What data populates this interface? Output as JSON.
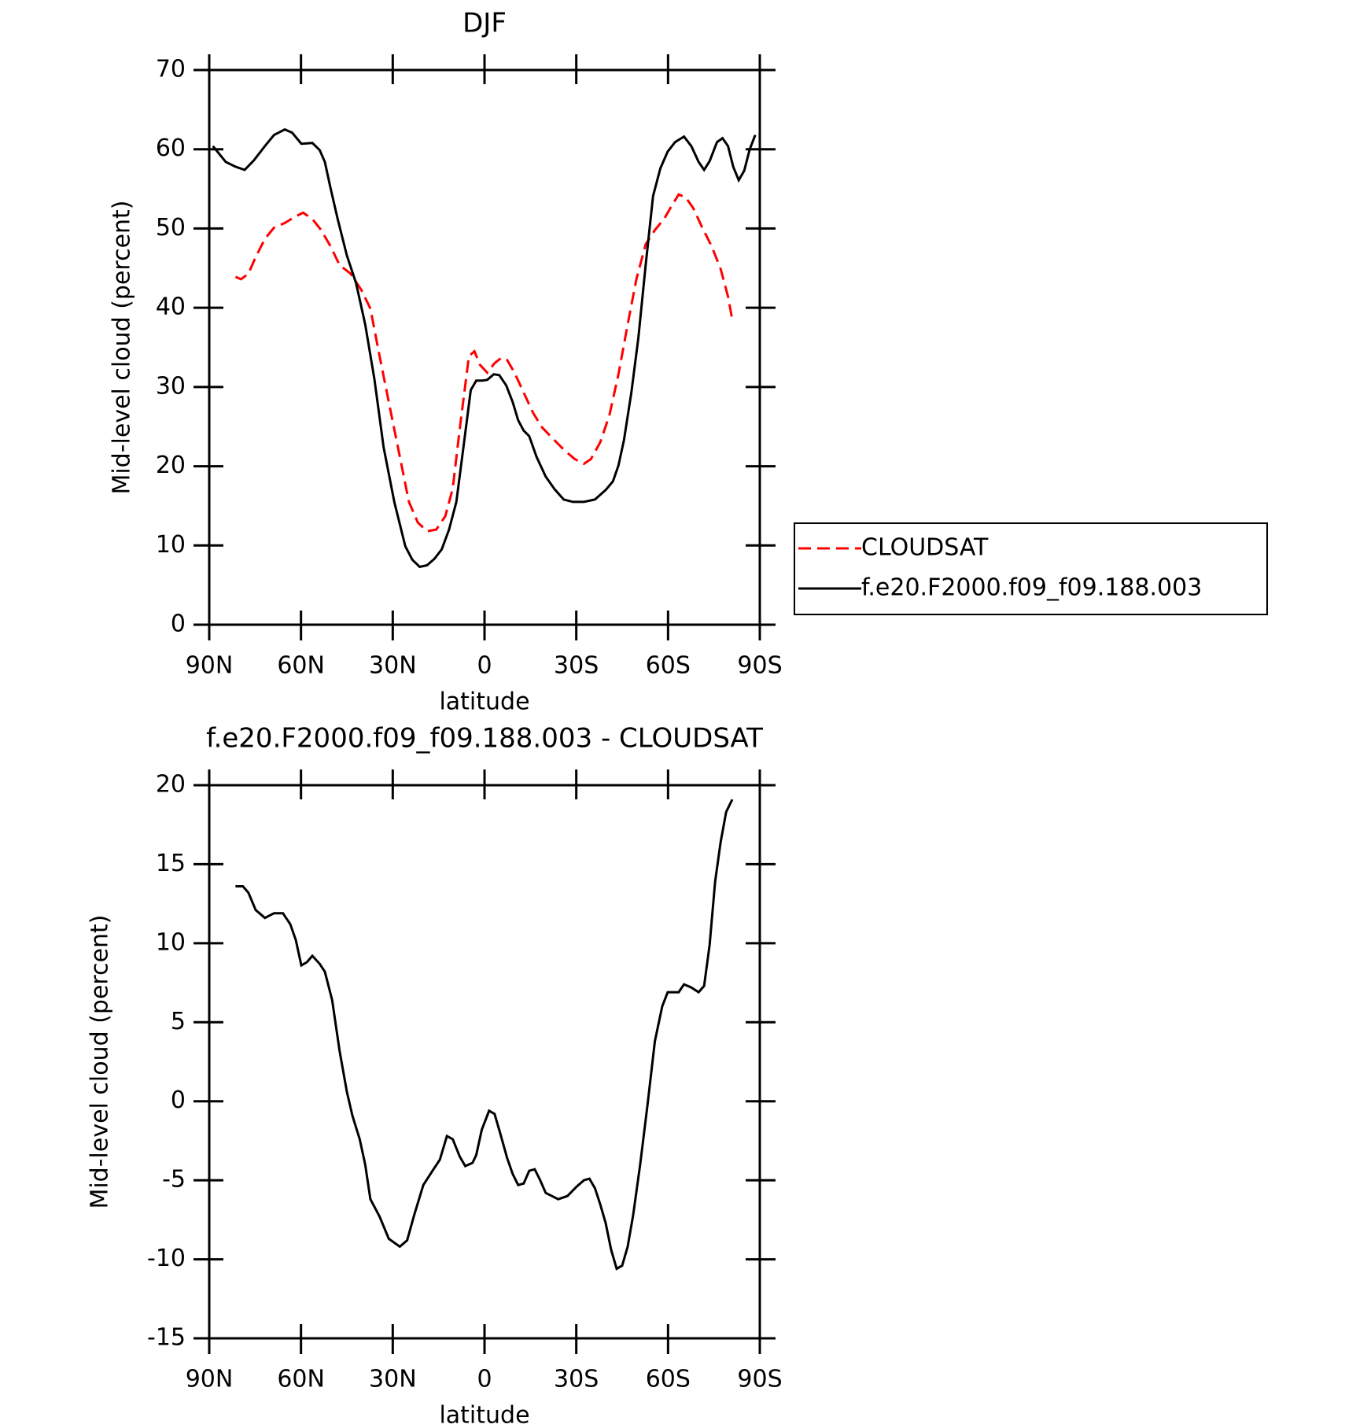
{
  "chart_data": [
    {
      "type": "line",
      "title": "DJF",
      "xlabel": "latitude",
      "ylabel": "Mid-level cloud (percent)",
      "xlim": [
        90,
        -90
      ],
      "xticks": [
        {
          "value": 90,
          "label": "90N"
        },
        {
          "value": 60,
          "label": "60N"
        },
        {
          "value": 30,
          "label": "30N"
        },
        0,
        {
          "value": -30,
          "label": "30S"
        },
        {
          "value": -60,
          "label": "60S"
        },
        {
          "value": -90,
          "label": "90S"
        }
      ],
      "ylim": [
        0,
        70
      ],
      "yticks": [
        0,
        10,
        20,
        30,
        40,
        50,
        60,
        70
      ],
      "legend": "right",
      "series": [
        {
          "name": "CLOUDSAT",
          "color": "#ff0000",
          "dashed": true,
          "x": [
            81.4,
            79.6,
            77.2,
            74.8,
            71.8,
            68.8,
            65.3,
            62.3,
            59.3,
            56.3,
            53.4,
            50.4,
            47.4,
            43.8,
            40.2,
            37.3,
            34.3,
            31.3,
            28.3,
            24.7,
            21.8,
            18.8,
            15.8,
            12.8,
            10.4,
            8.1,
            5.1,
            3.3,
            1.5,
            -0.9,
            -3.3,
            -5.6,
            -7.4,
            -9.8,
            -12.8,
            -15.8,
            -18.8,
            -22.3,
            -25.9,
            -29.5,
            -32.5,
            -34.8,
            -37.8,
            -40.8,
            -43.8,
            -46.8,
            -49.7,
            -52.7,
            -55.7,
            -58.7,
            -61.1,
            -63.5,
            -65.8,
            -68.2,
            -71.2,
            -74.2,
            -77.2,
            -79.6,
            -81.0
          ],
          "values": [
            43.9,
            43.6,
            44.3,
            46.4,
            48.7,
            50.1,
            50.7,
            51.4,
            52.0,
            51.2,
            49.8,
            47.8,
            45.4,
            44.3,
            42.2,
            39.9,
            33.9,
            28.1,
            22.4,
            15.5,
            12.9,
            11.8,
            12.0,
            13.7,
            17.2,
            24.7,
            33.9,
            34.5,
            32.8,
            31.8,
            33.0,
            33.7,
            33.4,
            31.8,
            29.3,
            26.8,
            24.9,
            23.5,
            22.1,
            20.9,
            20.3,
            20.9,
            23.0,
            26.4,
            31.6,
            37.9,
            43.7,
            48.0,
            49.8,
            51.2,
            52.8,
            54.3,
            53.9,
            52.6,
            50.1,
            47.8,
            44.9,
            41.4,
            38.5
          ]
        },
        {
          "name": "f.e20.F2000.f09_f09.188.003",
          "color": "#000000",
          "dashed": false,
          "x": [
            88.8,
            84.6,
            81.4,
            78.4,
            75.4,
            71.8,
            68.8,
            65.3,
            62.9,
            59.9,
            56.3,
            53.9,
            52.2,
            50.4,
            48.0,
            45.0,
            42.0,
            39.0,
            36.0,
            33.0,
            29.5,
            25.9,
            23.6,
            21.2,
            18.8,
            16.4,
            14.0,
            11.6,
            9.2,
            6.9,
            4.5,
            2.7,
            0.9,
            -0.9,
            -3.0,
            -4.8,
            -7.1,
            -9.2,
            -11.0,
            -12.8,
            -14.6,
            -17.0,
            -20.0,
            -22.9,
            -25.9,
            -28.9,
            -32.5,
            -36.1,
            -39.6,
            -42.0,
            -43.8,
            -45.6,
            -48.0,
            -50.3,
            -52.7,
            -55.1,
            -57.5,
            -59.9,
            -62.3,
            -65.2,
            -67.6,
            -70.0,
            -71.8,
            -73.6,
            -76.0,
            -77.8,
            -79.6,
            -81.3,
            -83.1,
            -84.9,
            -86.7,
            -88.5
          ],
          "values": [
            60.4,
            58.4,
            57.8,
            57.4,
            58.6,
            60.4,
            61.8,
            62.5,
            62.1,
            60.7,
            60.8,
            59.9,
            58.4,
            55.2,
            51.2,
            46.6,
            43.1,
            37.9,
            31.0,
            22.4,
            15.5,
            9.9,
            8.2,
            7.3,
            7.5,
            8.3,
            9.5,
            12.0,
            15.5,
            22.4,
            29.6,
            30.8,
            30.8,
            30.9,
            31.6,
            31.5,
            30.2,
            28.1,
            25.8,
            24.5,
            23.8,
            21.2,
            18.7,
            17.1,
            15.8,
            15.5,
            15.5,
            15.8,
            17.0,
            18.1,
            20.1,
            23.3,
            29.3,
            36.2,
            45.4,
            54.1,
            57.6,
            59.7,
            60.9,
            61.6,
            60.4,
            58.4,
            57.4,
            58.5,
            60.9,
            61.4,
            60.4,
            57.8,
            56.1,
            57.3,
            60.0,
            61.8
          ]
        }
      ]
    },
    {
      "type": "line",
      "title": "f.e20.F2000.f09_f09.188.003 - CLOUDSAT",
      "xlabel": "latitude",
      "ylabel": "Mid-level cloud (percent)",
      "xlim": [
        90,
        -90
      ],
      "xticks": [
        {
          "value": 90,
          "label": "90N"
        },
        {
          "value": 60,
          "label": "60N"
        },
        {
          "value": 30,
          "label": "30N"
        },
        0,
        {
          "value": -30,
          "label": "30S"
        },
        {
          "value": -60,
          "label": "60S"
        },
        {
          "value": -90,
          "label": "90S"
        }
      ],
      "ylim": [
        -15,
        20
      ],
      "yticks": [
        -15,
        -10,
        -5,
        0,
        5,
        10,
        15,
        20
      ],
      "series": [
        {
          "color": "#000000",
          "dashed": false,
          "x": [
            81.4,
            79.0,
            77.2,
            74.8,
            71.8,
            68.8,
            65.9,
            63.5,
            61.7,
            59.9,
            58.1,
            56.3,
            53.9,
            52.2,
            49.8,
            47.4,
            45.0,
            43.2,
            40.8,
            39.0,
            37.3,
            34.3,
            31.3,
            27.7,
            25.3,
            23.0,
            20.0,
            17.0,
            14.6,
            12.3,
            10.4,
            8.1,
            6.3,
            3.9,
            2.7,
            0.9,
            -1.5,
            -3.3,
            -5.1,
            -7.4,
            -9.2,
            -11.0,
            -12.8,
            -14.6,
            -16.4,
            -18.2,
            -20.0,
            -24.1,
            -27.1,
            -30.1,
            -32.5,
            -34.3,
            -36.1,
            -37.8,
            -39.6,
            -41.4,
            -43.2,
            -45.0,
            -46.8,
            -48.6,
            -50.9,
            -53.3,
            -55.7,
            -58.1,
            -59.9,
            -63.5,
            -65.2,
            -67.6,
            -70.0,
            -71.8,
            -73.6,
            -75.4,
            -77.2,
            -79.0,
            -81.0
          ],
          "values": [
            13.6,
            13.6,
            13.2,
            12.1,
            11.6,
            11.9,
            11.9,
            11.2,
            10.2,
            8.6,
            8.8,
            9.2,
            8.7,
            8.2,
            6.4,
            3.2,
            0.6,
            -0.9,
            -2.4,
            -4.0,
            -6.2,
            -7.3,
            -8.7,
            -9.2,
            -8.8,
            -7.2,
            -5.3,
            -4.4,
            -3.7,
            -2.2,
            -2.4,
            -3.5,
            -4.1,
            -3.9,
            -3.4,
            -1.8,
            -0.6,
            -0.8,
            -2.0,
            -3.6,
            -4.6,
            -5.3,
            -5.2,
            -4.4,
            -4.3,
            -5.0,
            -5.8,
            -6.2,
            -6.0,
            -5.4,
            -5.0,
            -4.9,
            -5.5,
            -6.5,
            -7.7,
            -9.4,
            -10.6,
            -10.4,
            -9.2,
            -7.2,
            -4.0,
            -0.2,
            3.8,
            6.0,
            6.9,
            6.9,
            7.4,
            7.2,
            6.9,
            7.3,
            9.9,
            13.9,
            16.4,
            18.3,
            19.1
          ]
        }
      ]
    }
  ]
}
